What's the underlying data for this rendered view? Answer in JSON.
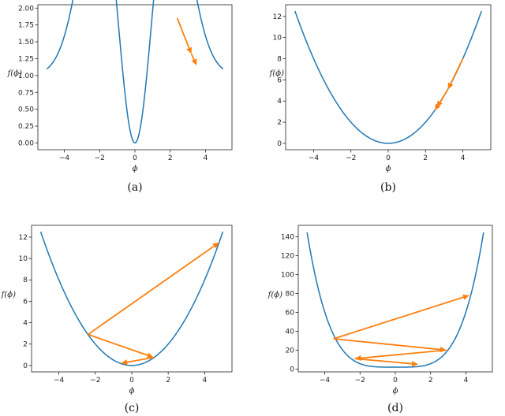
{
  "colors": {
    "curve": "#1f77b4",
    "arrow": "#ff7f0e"
  },
  "chart_data": [
    {
      "type": "line",
      "caption": "(a)",
      "xlabel": "ϕ",
      "ylabel": "f(ϕ)",
      "xlim": [
        -5.5,
        5.5
      ],
      "ylim": [
        -0.1,
        2.05
      ],
      "xticks": [
        -4,
        -2,
        0,
        2,
        4
      ],
      "xtick_labels": [
        "−4",
        "−2",
        "0",
        "2",
        "4"
      ],
      "yticks": [
        0.0,
        0.25,
        0.5,
        0.75,
        1.0,
        1.25,
        1.5,
        1.75,
        2.0
      ],
      "ytick_labels": [
        "0.00",
        "0.25",
        "0.50",
        "0.75",
        "1.00",
        "1.25",
        "1.50",
        "1.75",
        "2.00"
      ],
      "curve": {
        "function": "1 + 2*x^2*exp(-x^2/4) - exp(-x^2/2)",
        "x_range": [
          -5,
          5
        ]
      },
      "steps": [
        {
          "from": [
            2.4,
            1.85
          ],
          "to": [
            3.2,
            1.32
          ]
        },
        {
          "from": [
            3.2,
            1.32
          ],
          "to": [
            3.5,
            1.15
          ]
        }
      ]
    },
    {
      "type": "line",
      "caption": "(b)",
      "xlabel": "ϕ",
      "ylabel": "f(ϕ)",
      "xlim": [
        -5.5,
        5.5
      ],
      "ylim": [
        -0.6,
        13.1
      ],
      "xticks": [
        -4,
        -2,
        0,
        2,
        4
      ],
      "xtick_labels": [
        "−4",
        "−2",
        "0",
        "2",
        "4"
      ],
      "yticks": [
        0,
        2,
        4,
        6,
        8,
        10,
        12
      ],
      "ytick_labels": [
        "0",
        "2",
        "4",
        "6",
        "8",
        "10",
        "12"
      ],
      "curve": {
        "function": "x^2/2",
        "x_range": [
          -5,
          5
        ]
      },
      "steps": [
        {
          "from": [
            4.0,
            8.0
          ],
          "to": [
            3.2,
            5.1
          ]
        },
        {
          "from": [
            3.2,
            5.1
          ],
          "to": [
            2.6,
            3.4
          ]
        },
        {
          "from": [
            2.6,
            3.4
          ],
          "to": [
            2.5,
            3.1
          ]
        }
      ]
    },
    {
      "type": "line",
      "caption": "(c)",
      "xlabel": "ϕ",
      "ylabel": "f(ϕ)",
      "xlim": [
        -5.5,
        5.5
      ],
      "ylim": [
        -0.6,
        13.1
      ],
      "xticks": [
        -4,
        -2,
        0,
        2,
        4
      ],
      "xtick_labels": [
        "−4",
        "−2",
        "0",
        "2",
        "4"
      ],
      "yticks": [
        0,
        2,
        4,
        6,
        8,
        10,
        12
      ],
      "ytick_labels": [
        "0",
        "2",
        "4",
        "6",
        "8",
        "10",
        "12"
      ],
      "curve": {
        "function": "x^2/2",
        "x_range": [
          -5,
          5
        ]
      },
      "steps": [
        {
          "from": [
            -2.4,
            2.9
          ],
          "to": [
            4.8,
            11.5
          ]
        },
        {
          "from": [
            -2.4,
            2.9
          ],
          "to": [
            1.2,
            0.75
          ]
        },
        {
          "from": [
            1.2,
            0.75
          ],
          "to": [
            -0.6,
            0.2
          ]
        }
      ]
    },
    {
      "type": "line",
      "caption": "(d)",
      "xlabel": "ϕ",
      "ylabel": "f(ϕ)",
      "xlim": [
        -5.5,
        5.5
      ],
      "ylim": [
        -3,
        152
      ],
      "xticks": [
        -4,
        -2,
        0,
        2,
        4
      ],
      "xtick_labels": [
        "−4",
        "−2",
        "0",
        "2",
        "4"
      ],
      "yticks": [
        0,
        20,
        40,
        60,
        80,
        100,
        120,
        140
      ],
      "ytick_labels": [
        "0",
        "20",
        "40",
        "60",
        "80",
        "100",
        "120",
        "140"
      ],
      "curve": {
        "function": "0.228*x^4 + 2",
        "x_range": [
          -5,
          5
        ]
      },
      "steps": [
        {
          "from": [
            -3.5,
            32
          ],
          "to": [
            4.2,
            78
          ]
        },
        {
          "from": [
            -3.5,
            32
          ],
          "to": [
            2.9,
            20
          ]
        },
        {
          "from": [
            2.9,
            20
          ],
          "to": [
            -2.3,
            11
          ]
        },
        {
          "from": [
            -2.3,
            11
          ],
          "to": [
            1.3,
            5
          ]
        }
      ]
    }
  ]
}
